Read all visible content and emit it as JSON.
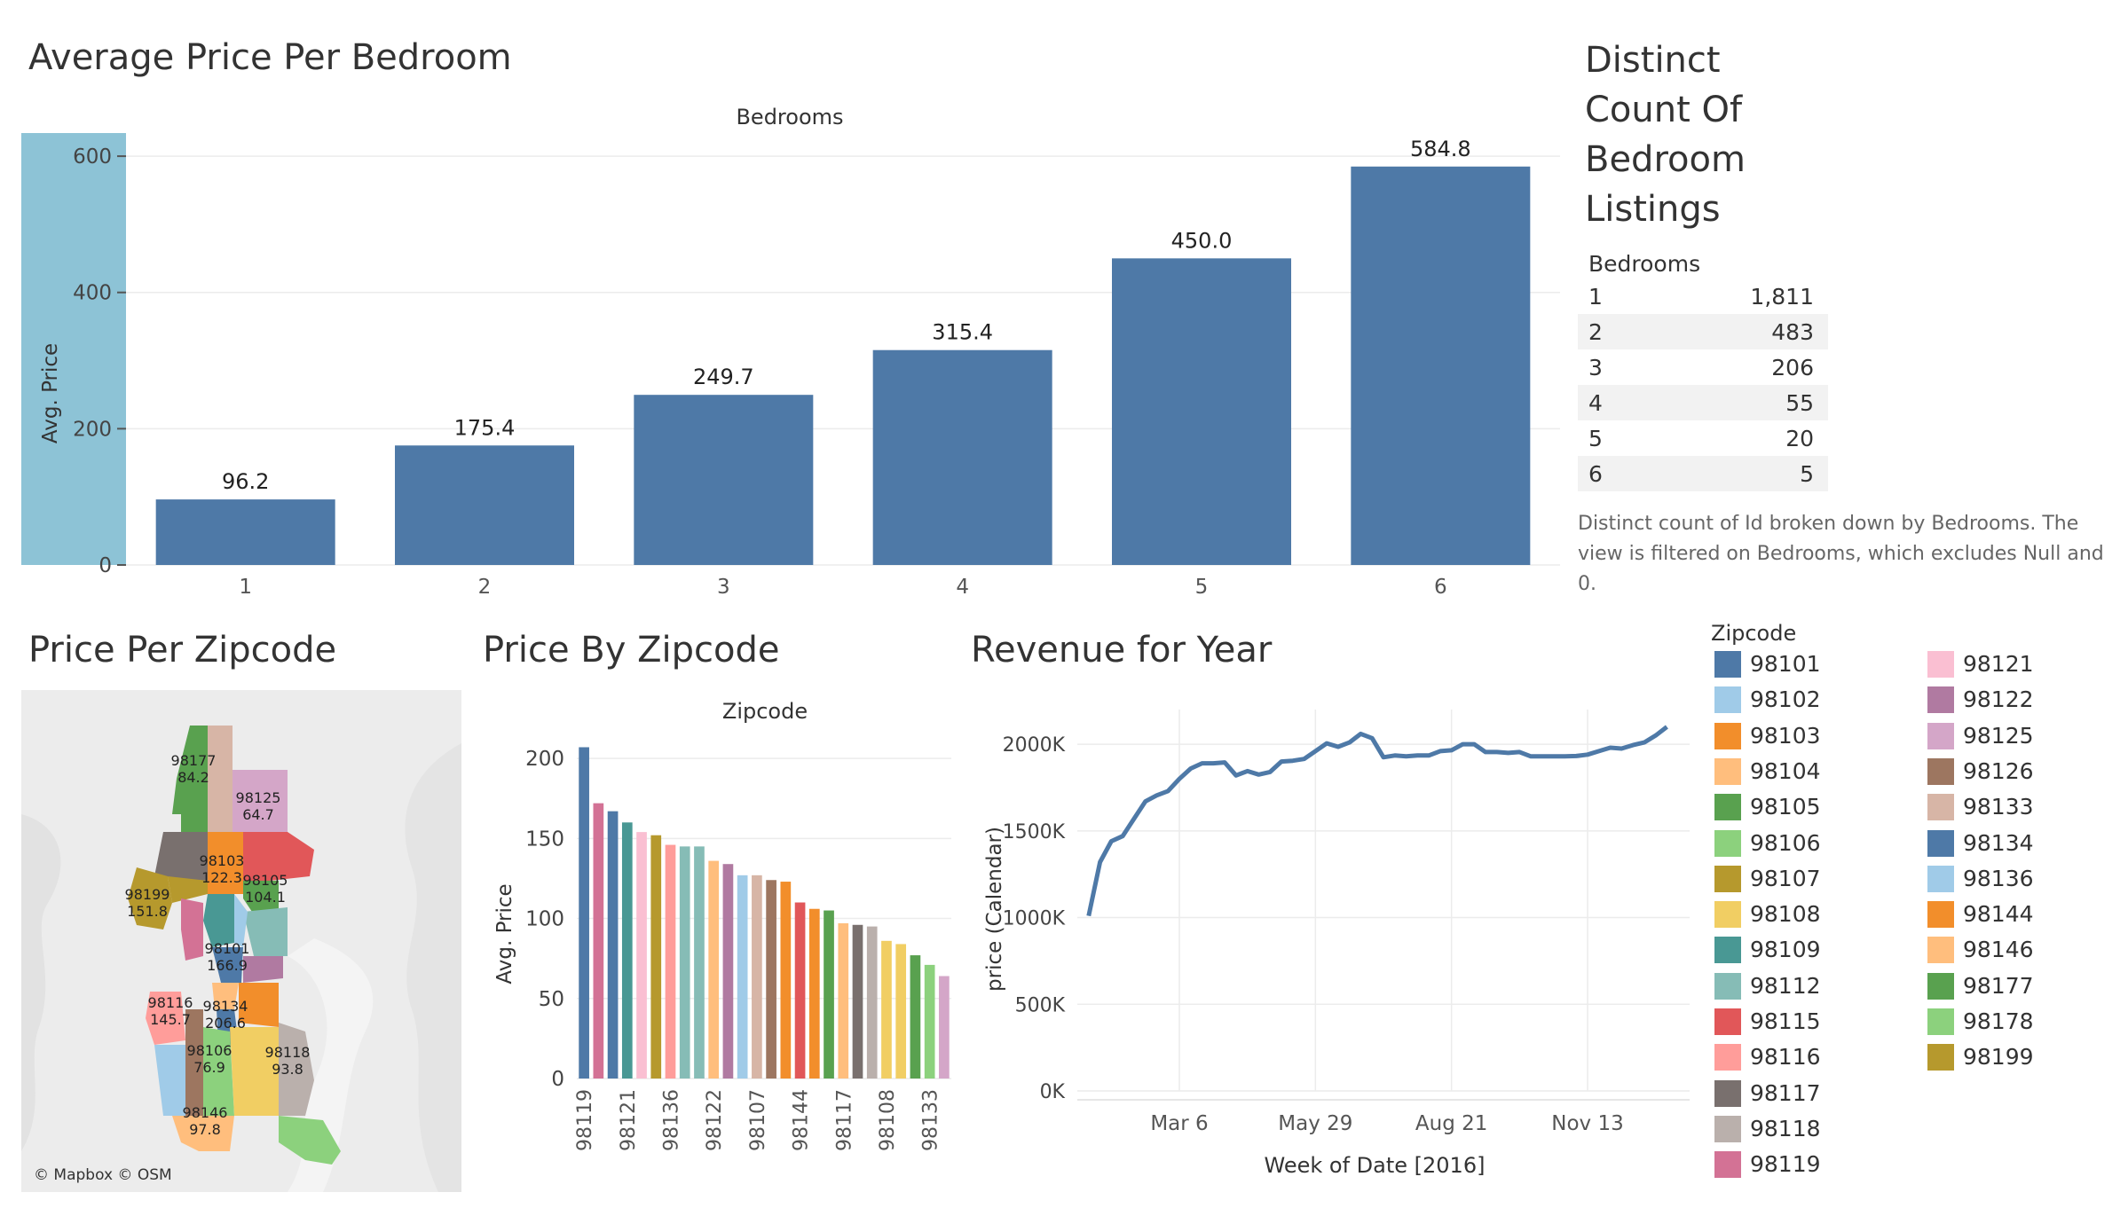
{
  "titles": {
    "avg_price_bedroom": "Average Price Per Bedroom",
    "distinct_count": [
      "Distinct",
      "Count Of",
      "Bedroom",
      "Listings"
    ],
    "price_zipcode_map": "Price Per Zipcode",
    "price_by_zipcode": "Price By Zipcode",
    "revenue": "Revenue for Year"
  },
  "bedroom_table": {
    "header": "Bedrooms",
    "rows": [
      {
        "k": "1",
        "v": "1,811"
      },
      {
        "k": "2",
        "v": "483"
      },
      {
        "k": "3",
        "v": "206"
      },
      {
        "k": "4",
        "v": "55"
      },
      {
        "k": "5",
        "v": "20"
      },
      {
        "k": "6",
        "v": "5"
      }
    ],
    "caption": [
      "Distinct count of Id broken down by Bedrooms. The",
      "view is filtered on Bedrooms, which excludes Null and",
      "0."
    ]
  },
  "map": {
    "attribution": "© Mapbox © OSM",
    "labels": [
      {
        "zip": "98177",
        "val": "84.2"
      },
      {
        "zip": "98125",
        "val": "64.7"
      },
      {
        "zip": "98103",
        "val": "122.3"
      },
      {
        "zip": "98105",
        "val": "104.1"
      },
      {
        "zip": "98199",
        "val": "151.8"
      },
      {
        "zip": "98101",
        "val": "166.9"
      },
      {
        "zip": "98116",
        "val": "145.7"
      },
      {
        "zip": "98134",
        "val": "206.6"
      },
      {
        "zip": "98106",
        "val": "76.9"
      },
      {
        "zip": "98118",
        "val": "93.8"
      },
      {
        "zip": "98146",
        "val": "97.8"
      }
    ]
  },
  "legend": {
    "title": "Zipcode",
    "items": [
      {
        "zip": "98101",
        "color": "#4e79a7"
      },
      {
        "zip": "98102",
        "color": "#a0cbe8"
      },
      {
        "zip": "98103",
        "color": "#f28e2b"
      },
      {
        "zip": "98104",
        "color": "#ffbe7d"
      },
      {
        "zip": "98105",
        "color": "#59a14f"
      },
      {
        "zip": "98106",
        "color": "#8cd17d"
      },
      {
        "zip": "98107",
        "color": "#b6992d"
      },
      {
        "zip": "98108",
        "color": "#f1ce63"
      },
      {
        "zip": "98109",
        "color": "#499894"
      },
      {
        "zip": "98112",
        "color": "#86bcb6"
      },
      {
        "zip": "98115",
        "color": "#e15759"
      },
      {
        "zip": "98116",
        "color": "#ff9d9a"
      },
      {
        "zip": "98117",
        "color": "#79706e"
      },
      {
        "zip": "98118",
        "color": "#bab0ac"
      },
      {
        "zip": "98119",
        "color": "#d37295"
      },
      {
        "zip": "98121",
        "color": "#fabfd2"
      },
      {
        "zip": "98122",
        "color": "#b07aa1"
      },
      {
        "zip": "98125",
        "color": "#d4a6c8"
      },
      {
        "zip": "98126",
        "color": "#9d7660"
      },
      {
        "zip": "98133",
        "color": "#d7b5a6"
      },
      {
        "zip": "98134",
        "color": "#4e79a7"
      },
      {
        "zip": "98136",
        "color": "#a0cbe8"
      },
      {
        "zip": "98144",
        "color": "#f28e2b"
      },
      {
        "zip": "98146",
        "color": "#ffbe7d"
      },
      {
        "zip": "98177",
        "color": "#59a14f"
      },
      {
        "zip": "98178",
        "color": "#8cd17d"
      },
      {
        "zip": "98199",
        "color": "#b6992d"
      }
    ]
  },
  "chart_data": [
    {
      "type": "bar",
      "title": "Average Price Per Bedroom",
      "header": "Bedrooms",
      "ylabel": "Avg. Price",
      "categories": [
        "1",
        "2",
        "3",
        "4",
        "5",
        "6"
      ],
      "values": [
        96.2,
        175.4,
        249.7,
        315.4,
        450.0,
        584.8
      ],
      "value_labels": [
        "96.2",
        "175.4",
        "249.7",
        "315.4",
        "450.0",
        "584.8"
      ],
      "yticks": [
        0,
        200,
        400,
        600
      ],
      "ylim": [
        0,
        660
      ],
      "bar_color": "#4e79a7",
      "grid": true
    },
    {
      "type": "bar",
      "title": "Price By Zipcode",
      "header": "Zipcode",
      "ylabel": "Avg. Price",
      "yticks": [
        0,
        50,
        100,
        150,
        200
      ],
      "ylim": [
        0,
        225
      ],
      "tick_labels": [
        "98119",
        "98121",
        "98136",
        "98122",
        "98107",
        "98144",
        "98117",
        "98108",
        "98133"
      ],
      "bars": [
        {
          "value": 207,
          "color": "#4e79a7"
        },
        {
          "value": 172,
          "color": "#d37295"
        },
        {
          "value": 167,
          "color": "#4e79a7"
        },
        {
          "value": 160,
          "color": "#499894"
        },
        {
          "value": 154,
          "color": "#fabfd2"
        },
        {
          "value": 152,
          "color": "#b6992d"
        },
        {
          "value": 146,
          "color": "#ff9d9a"
        },
        {
          "value": 145,
          "color": "#86bcb6"
        },
        {
          "value": 145,
          "color": "#86bcb6"
        },
        {
          "value": 136,
          "color": "#ffbe7d"
        },
        {
          "value": 134,
          "color": "#b07aa1"
        },
        {
          "value": 127,
          "color": "#a0cbe8"
        },
        {
          "value": 127,
          "color": "#d7b5a6"
        },
        {
          "value": 124,
          "color": "#9d7660"
        },
        {
          "value": 123,
          "color": "#f28e2b"
        },
        {
          "value": 110,
          "color": "#e15759"
        },
        {
          "value": 106,
          "color": "#f28e2b"
        },
        {
          "value": 105,
          "color": "#59a14f"
        },
        {
          "value": 97,
          "color": "#ffbe7d"
        },
        {
          "value": 96,
          "color": "#79706e"
        },
        {
          "value": 95,
          "color": "#bab0ac"
        },
        {
          "value": 86,
          "color": "#f1ce63"
        },
        {
          "value": 84,
          "color": "#f1ce63"
        },
        {
          "value": 77,
          "color": "#59a14f"
        },
        {
          "value": 71,
          "color": "#8cd17d"
        },
        {
          "value": 64,
          "color": "#d4a6c8"
        }
      ],
      "grid": true
    },
    {
      "type": "line",
      "title": "Revenue for Year",
      "xlabel": "Week of Date [2016]",
      "ylabel": "price (Calendar)",
      "ytick_labels": [
        "0K",
        "500K",
        "1000K",
        "1500K",
        "2000K"
      ],
      "yticks": [
        0,
        500000,
        1000000,
        1500000,
        2000000
      ],
      "ylim": [
        0,
        2200000
      ],
      "xtick_labels": [
        "Mar 6",
        "May 29",
        "Aug 21",
        "Nov 13"
      ],
      "xtick_weeks": [
        9,
        21,
        33,
        45
      ],
      "xlim": [
        0,
        54
      ],
      "line_color": "#4e79a7",
      "series": [
        {
          "weeks": [
            1,
            2,
            3,
            4,
            5,
            6,
            7,
            8,
            9,
            10,
            11,
            12,
            13,
            14,
            15,
            16,
            17,
            18,
            19,
            20,
            21,
            22,
            23,
            24,
            25,
            26,
            27,
            28,
            29,
            30,
            31,
            32,
            33,
            34,
            35,
            36,
            37,
            38,
            39,
            40,
            41,
            42,
            43,
            44,
            45,
            46,
            47,
            48,
            49,
            50,
            51,
            52
          ],
          "values": [
            1010000,
            1320000,
            1440000,
            1470000,
            1570000,
            1670000,
            1705000,
            1730000,
            1800000,
            1860000,
            1890000,
            1890000,
            1895000,
            1820000,
            1845000,
            1825000,
            1840000,
            1900000,
            1905000,
            1915000,
            1960000,
            2005000,
            1985000,
            2010000,
            2060000,
            2035000,
            1925000,
            1935000,
            1930000,
            1935000,
            1935000,
            1960000,
            1965000,
            2000000,
            2000000,
            1955000,
            1955000,
            1950000,
            1955000,
            1930000,
            1930000,
            1930000,
            1930000,
            1932000,
            1940000,
            1960000,
            1980000,
            1975000,
            1995000,
            2010000,
            2050000,
            2100000
          ]
        }
      ],
      "grid": true
    }
  ]
}
